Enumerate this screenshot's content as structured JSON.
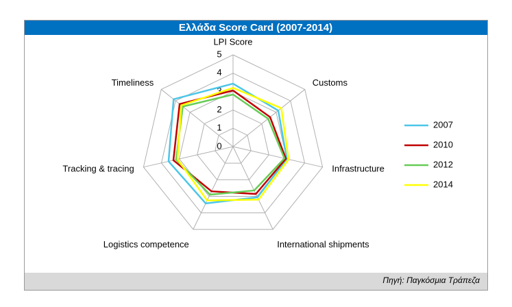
{
  "chart_data": {
    "type": "radar",
    "title": "Ελλάδα Score Card (2007-2014)",
    "source": "Πηγή: Παγκόσμια Τράπεζα",
    "categories": [
      "LPI Score",
      "Customs",
      "Infrastructure",
      "International shipments",
      "Logistics competence",
      "Tracking & tracing",
      "Timeliness"
    ],
    "rlim": [
      0,
      5
    ],
    "rticks": [
      0,
      1,
      2,
      3,
      4,
      5
    ],
    "series": [
      {
        "name": "2007",
        "color": "#4bc6e8",
        "values": [
          3.43,
          3.15,
          3.0,
          3.06,
          3.43,
          3.6,
          4.14
        ]
      },
      {
        "name": "2010",
        "color": "#c00000",
        "values": [
          3.06,
          2.58,
          2.95,
          2.86,
          2.7,
          3.33,
          3.72
        ]
      },
      {
        "name": "2012",
        "color": "#66cc55",
        "values": [
          2.84,
          2.44,
          2.87,
          2.65,
          2.9,
          3.18,
          3.5
        ]
      },
      {
        "name": "2014",
        "color": "#ffff00",
        "values": [
          3.2,
          3.36,
          3.1,
          3.2,
          3.25,
          3.1,
          3.6
        ]
      }
    ],
    "legend": "right"
  }
}
